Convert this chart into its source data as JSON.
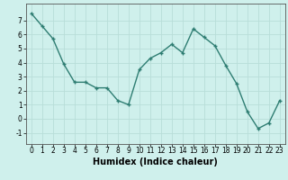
{
  "x": [
    0,
    1,
    2,
    3,
    4,
    5,
    6,
    7,
    8,
    9,
    10,
    11,
    12,
    13,
    14,
    15,
    16,
    17,
    18,
    19,
    20,
    21,
    22,
    23
  ],
  "y": [
    7.5,
    6.6,
    5.7,
    3.9,
    2.6,
    2.6,
    2.2,
    2.2,
    1.3,
    1.0,
    3.5,
    4.3,
    4.7,
    5.3,
    4.7,
    6.4,
    5.8,
    5.2,
    3.8,
    2.5,
    0.5,
    -0.7,
    -0.3,
    1.3
  ],
  "line_color": "#2e7d72",
  "marker": "+",
  "marker_size": 3.5,
  "linewidth": 1.0,
  "xlabel": "Humidex (Indice chaleur)",
  "xlabel_fontsize": 7,
  "xlabel_fontweight": "bold",
  "bg_color": "#cff0ec",
  "grid_color": "#b8ddd8",
  "ylim": [
    -1.8,
    8.2
  ],
  "xlim": [
    -0.5,
    23.5
  ],
  "yticks": [
    -1,
    0,
    1,
    2,
    3,
    4,
    5,
    6,
    7
  ],
  "xticks": [
    0,
    1,
    2,
    3,
    4,
    5,
    6,
    7,
    8,
    9,
    10,
    11,
    12,
    13,
    14,
    15,
    16,
    17,
    18,
    19,
    20,
    21,
    22,
    23
  ],
  "tick_fontsize": 5.5
}
